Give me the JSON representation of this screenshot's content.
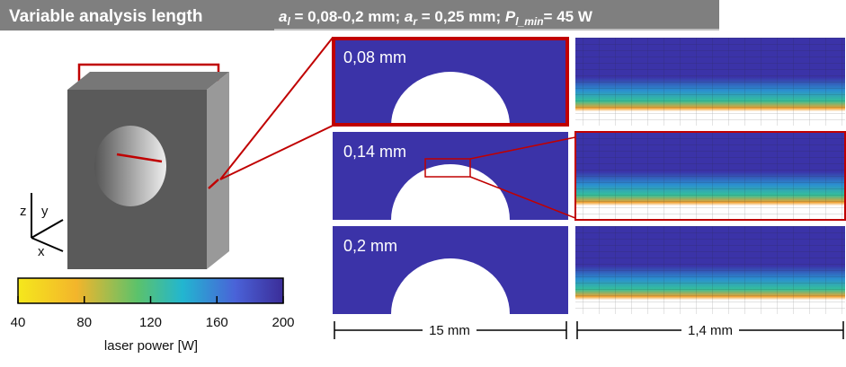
{
  "header": {
    "title": "Variable analysis length",
    "formula": [
      {
        "base": "a",
        "sub": "l",
        "text": " = 0,08-0,2 mm; "
      },
      {
        "base": "a",
        "sub": "r",
        "text": " = 0,25 mm; "
      },
      {
        "base": "P",
        "sub": "l_min",
        "text": "= 45 W"
      }
    ]
  },
  "axes": {
    "z": "z",
    "y": "y",
    "x": "x"
  },
  "colorbar": {
    "ticks": [
      40,
      80,
      120,
      160,
      200
    ],
    "label": "laser power [W]"
  },
  "panels": [
    {
      "label": "0,08 mm"
    },
    {
      "label": "0,14 mm"
    },
    {
      "label": "0,2 mm"
    }
  ],
  "scales": {
    "left": "15 mm",
    "right": "1,4 mm"
  }
}
